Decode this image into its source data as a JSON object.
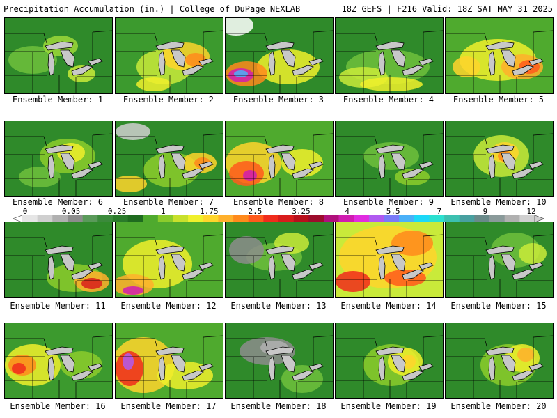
{
  "header": {
    "left": "Precipitation Accumulation (in.) | College of DuPage NEXLAB",
    "right": "18Z GEFS | F216 Valid: 18Z SAT MAY 31 2025"
  },
  "colorbar": {
    "tick_labels": [
      "0",
      "0.05",
      "0.25",
      "1",
      "1.75",
      "2.5",
      "3.25",
      "4",
      "5.5",
      "7",
      "9",
      "12"
    ],
    "colors": [
      "#e6e6e6",
      "#cfcfcf",
      "#b0b0b0",
      "#8c8c8c",
      "#5a9a5a",
      "#3b8a3b",
      "#2a7a2a",
      "#1f6b1f",
      "#4faa2e",
      "#8ccc2c",
      "#c8e02c",
      "#f0f02c",
      "#ffd52c",
      "#ffb02c",
      "#ff8a1c",
      "#ff5a1c",
      "#f02c1c",
      "#d81c1c",
      "#b8101c",
      "#9c0c2c",
      "#b0107c",
      "#d01cb0",
      "#e02ce0",
      "#b05af0",
      "#7a7af8",
      "#4ab0f8",
      "#1cd8f8",
      "#2ce0d0",
      "#3cc0b0",
      "#48a0a0",
      "#6a8a8a",
      "#8a9a9a",
      "#b0b0b0",
      "#d0d0d0"
    ]
  },
  "panels": [
    {
      "label": "Ensemble Member: 1",
      "base": "#2f8a2a",
      "blobs": [
        [
          "#6fbf3c",
          40,
          60,
          35,
          20
        ],
        [
          "#9cd83a",
          80,
          40,
          25,
          15
        ],
        [
          "#c9ea3a",
          110,
          80,
          20,
          12
        ]
      ]
    },
    {
      "label": "Ensemble Member: 2",
      "base": "#3c9a2e",
      "blobs": [
        [
          "#c9ea3a",
          70,
          70,
          40,
          25
        ],
        [
          "#ffd52c",
          100,
          55,
          35,
          20
        ],
        [
          "#ff8a1c",
          115,
          60,
          15,
          10
        ],
        [
          "#f0f02c",
          55,
          95,
          25,
          10
        ]
      ]
    },
    {
      "label": "Ensemble Member: 3",
      "base": "#2f8a2a",
      "blobs": [
        [
          "#f0f02c",
          90,
          70,
          45,
          25
        ],
        [
          "#ff8a1c",
          30,
          80,
          30,
          18
        ],
        [
          "#d01cb0",
          22,
          82,
          18,
          10
        ],
        [
          "#4ab0f8",
          22,
          80,
          10,
          5
        ],
        [
          "#ffffff",
          15,
          10,
          25,
          15
        ]
      ]
    },
    {
      "label": "Ensemble Member: 4",
      "base": "#2f8a2a",
      "blobs": [
        [
          "#6fbf3c",
          75,
          70,
          60,
          25
        ],
        [
          "#c9ea3a",
          40,
          85,
          35,
          15
        ],
        [
          "#f0f02c",
          80,
          95,
          45,
          10
        ]
      ]
    },
    {
      "label": "Ensemble Member: 5",
      "base": "#4faa2e",
      "blobs": [
        [
          "#f0f02c",
          75,
          60,
          55,
          30
        ],
        [
          "#ffb02c",
          110,
          70,
          30,
          18
        ],
        [
          "#ff5a1c",
          120,
          70,
          15,
          10
        ],
        [
          "#ffd52c",
          30,
          70,
          20,
          15
        ]
      ]
    },
    {
      "label": "Ensemble Member: 6",
      "base": "#2f8a2a",
      "blobs": [
        [
          "#8ccc2c",
          90,
          50,
          40,
          25
        ],
        [
          "#f0f02c",
          95,
          45,
          20,
          14
        ],
        [
          "#6fbf3c",
          50,
          80,
          30,
          15
        ]
      ]
    },
    {
      "label": "Ensemble Member: 7",
      "base": "#2f8a2a",
      "blobs": [
        [
          "#8ccc2c",
          80,
          70,
          40,
          25
        ],
        [
          "#ffd52c",
          120,
          60,
          25,
          15
        ],
        [
          "#ff8a1c",
          125,
          60,
          12,
          8
        ],
        [
          "#ffd52c",
          20,
          90,
          25,
          12
        ],
        [
          "#cfcfcf",
          25,
          15,
          25,
          12
        ]
      ]
    },
    {
      "label": "Ensemble Member: 8",
      "base": "#4faa2e",
      "blobs": [
        [
          "#ffd52c",
          40,
          60,
          40,
          30
        ],
        [
          "#ff5a1c",
          30,
          75,
          25,
          18
        ],
        [
          "#d01cb0",
          35,
          78,
          10,
          8
        ],
        [
          "#f0f02c",
          110,
          60,
          30,
          20
        ]
      ]
    },
    {
      "label": "Ensemble Member: 9",
      "base": "#2f8a2a",
      "blobs": [
        [
          "#6fbf3c",
          80,
          50,
          40,
          20
        ],
        [
          "#8ccc2c",
          110,
          80,
          25,
          12
        ]
      ]
    },
    {
      "label": "Ensemble Member: 10",
      "base": "#2f8a2a",
      "blobs": [
        [
          "#c9ea3a",
          80,
          50,
          40,
          30
        ],
        [
          "#ffd52c",
          85,
          45,
          20,
          15
        ],
        [
          "#ff8a1c",
          85,
          50,
          10,
          8
        ]
      ]
    },
    {
      "label": "Ensemble Member: 11",
      "base": "#2f8a2a",
      "blobs": [
        [
          "#8ccc2c",
          100,
          80,
          40,
          20
        ],
        [
          "#ffb02c",
          125,
          85,
          25,
          15
        ],
        [
          "#d81c1c",
          125,
          88,
          15,
          8
        ]
      ]
    },
    {
      "label": "Ensemble Member: 12",
      "base": "#4faa2e",
      "blobs": [
        [
          "#f0f02c",
          60,
          60,
          50,
          35
        ],
        [
          "#ffb02c",
          25,
          90,
          30,
          15
        ],
        [
          "#d01cb0",
          25,
          98,
          15,
          6
        ]
      ]
    },
    {
      "label": "Ensemble Member: 13",
      "base": "#2f8a2a",
      "blobs": [
        [
          "#6fbf3c",
          70,
          50,
          40,
          20
        ],
        [
          "#c9ea3a",
          95,
          30,
          25,
          15
        ],
        [
          "#8c8c8c",
          30,
          40,
          25,
          20
        ]
      ]
    },
    {
      "label": "Ensemble Member: 14",
      "base": "#c9ea3a",
      "blobs": [
        [
          "#ffd52c",
          75,
          50,
          70,
          45
        ],
        [
          "#ff8a1c",
          110,
          30,
          30,
          18
        ],
        [
          "#f02c1c",
          25,
          85,
          25,
          15
        ],
        [
          "#ff5a1c",
          100,
          80,
          30,
          12
        ]
      ]
    },
    {
      "label": "Ensemble Member: 15",
      "base": "#2f8a2a",
      "blobs": [
        [
          "#6fbf3c",
          100,
          40,
          35,
          25
        ],
        [
          "#c9ea3a",
          125,
          45,
          20,
          15
        ]
      ]
    },
    {
      "label": "Ensemble Member: 16",
      "base": "#3c9a2e",
      "blobs": [
        [
          "#f0f02c",
          40,
          60,
          40,
          30
        ],
        [
          "#ff8a1c",
          25,
          60,
          20,
          15
        ],
        [
          "#f02c1c",
          20,
          65,
          10,
          8
        ],
        [
          "#8ccc2c",
          110,
          60,
          30,
          20
        ]
      ]
    },
    {
      "label": "Ensemble Member: 17",
      "base": "#4faa2e",
      "blobs": [
        [
          "#ffd52c",
          40,
          60,
          45,
          40
        ],
        [
          "#f02c1c",
          20,
          65,
          20,
          25
        ],
        [
          "#b05af0",
          18,
          55,
          8,
          12
        ],
        [
          "#f0f02c",
          100,
          75,
          40,
          20
        ]
      ]
    },
    {
      "label": "Ensemble Member: 18",
      "base": "#2f8a2a",
      "blobs": [
        [
          "#8c8c8c",
          60,
          40,
          40,
          20
        ],
        [
          "#b0b0b0",
          70,
          35,
          20,
          10
        ],
        [
          "#6fbf3c",
          110,
          80,
          30,
          20
        ]
      ]
    },
    {
      "label": "Ensemble Member: 19",
      "base": "#2f8a2a",
      "blobs": [
        [
          "#8ccc2c",
          80,
          60,
          40,
          30
        ],
        [
          "#f0f02c",
          100,
          55,
          25,
          20
        ],
        [
          "#ffd52c",
          105,
          55,
          10,
          10
        ]
      ]
    },
    {
      "label": "Ensemble Member: 20",
      "base": "#2f8a2a",
      "blobs": [
        [
          "#8ccc2c",
          90,
          60,
          40,
          30
        ],
        [
          "#f0f02c",
          110,
          50,
          25,
          20
        ],
        [
          "#ffb02c",
          115,
          45,
          12,
          10
        ]
      ]
    }
  ]
}
